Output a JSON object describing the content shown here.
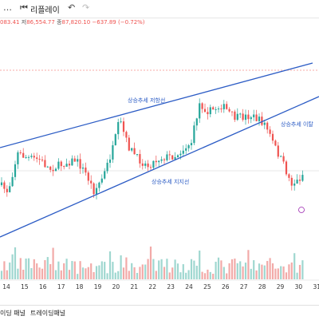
{
  "toolbar": {
    "replay_label": "리플레이"
  },
  "ohlc": {
    "o_value": "083.41",
    "h_label": "저",
    "h_value": "86,554.77",
    "c_label": "종",
    "c_value": "87,820.10",
    "change": "−637.89 (−0.72%)"
  },
  "colors": {
    "up": "#26a69a",
    "down": "#ef5350",
    "trendline": "#2c5cc5",
    "volume_up": "#9fd7d0",
    "volume_down": "#f2aaa8"
  },
  "chart_data": {
    "type": "candlestick",
    "x_ticks": [
      "14",
      "15",
      "16",
      "17",
      "18",
      "19",
      "20",
      "21",
      "22",
      "23",
      "24",
      "25",
      "26",
      "27",
      "28",
      "29",
      "30",
      "31"
    ],
    "annotations": [
      {
        "text": "상승추세 저항선"
      },
      {
        "text": "상승추세 이탈"
      },
      {
        "text": "상승추세 지지선"
      }
    ]
  },
  "bottom_tabs": {
    "tab1": "이딩 패널",
    "tab2": "트레이딩패널"
  }
}
